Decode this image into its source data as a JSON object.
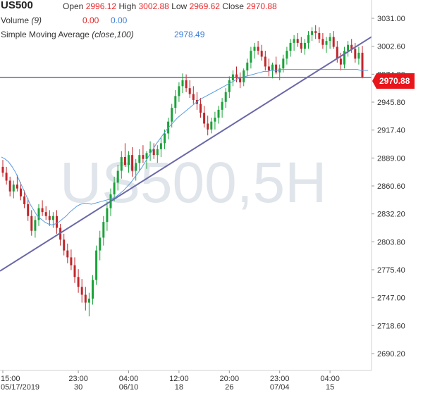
{
  "header": {
    "symbol": "US500",
    "open_label": "Open",
    "open_value": "2996.12",
    "high_label": "High",
    "high_value": "3002.88",
    "low_label": "Low",
    "low_value": "2969.62",
    "close_label": "Close",
    "close_value": "2970.88",
    "volume_label": "Volume",
    "volume_param": "(9)",
    "volume_v1": "0.00",
    "volume_v2": "0.00",
    "sma_label": "Simple Moving Average",
    "sma_param": "(close,100)",
    "sma_value": "2978.49"
  },
  "watermark": "US500,5H",
  "last_price_label": "2970.88",
  "colors": {
    "up": "#1aa33a",
    "down": "#c0262c",
    "sma": "#5b9be0",
    "trendline": "#6a68a8",
    "price_tag": "#e8151b",
    "watermark": "#dfe5ea"
  },
  "chart_data": {
    "type": "candlestick",
    "ylim": [
      2675,
      3045
    ],
    "yticks": [
      "3031.00",
      "3002.60",
      "2974.20",
      "2945.80",
      "2917.40",
      "2889.00",
      "2860.60",
      "2832.20",
      "2803.80",
      "2775.40",
      "2747.00",
      "2718.60",
      "2690.20"
    ],
    "xticks": [
      {
        "time": "15:00",
        "date": "05/17/2019",
        "bar": 0
      },
      {
        "time": "23:00",
        "date": "30",
        "bar": 21
      },
      {
        "time": "04:00",
        "date": "06/10",
        "bar": 35
      },
      {
        "time": "12:00",
        "date": "18",
        "bar": 49
      },
      {
        "time": "20:00",
        "date": "26",
        "bar": 63
      },
      {
        "time": "23:00",
        "date": "07/04",
        "bar": 77
      },
      {
        "time": "04:00",
        "date": "15",
        "bar": 91
      }
    ],
    "last_price": 2970.88,
    "horizontal_level": 2970.88,
    "trendline": {
      "start": {
        "bar": 0,
        "price": 2775
      },
      "end": {
        "bar": 102,
        "price": 3010
      }
    },
    "sma_100": [
      2890,
      2888,
      2885,
      2880,
      2874,
      2866,
      2858,
      2850,
      2842,
      2836,
      2830,
      2827,
      2824,
      2822,
      2821,
      2822,
      2824,
      2827,
      2830,
      2834,
      2837,
      2840,
      2842,
      2843,
      2843,
      2842,
      2843,
      2844,
      2845,
      2846,
      2847,
      2848,
      2850,
      2853,
      2856,
      2860,
      2864,
      2869,
      2874,
      2879,
      2885,
      2891,
      2897,
      2903,
      2908,
      2913,
      2918,
      2922,
      2926,
      2930,
      2933,
      2936,
      2939,
      2942,
      2945,
      2948,
      2950,
      2952,
      2954,
      2956,
      2958,
      2960,
      2962,
      2964,
      2966,
      2968,
      2970,
      2971,
      2972,
      2973,
      2974,
      2975,
      2976,
      2977,
      2977,
      2978,
      2978,
      2978,
      2979,
      2979,
      2979,
      2979,
      2979,
      2979,
      2979,
      2979,
      2979,
      2979,
      2979,
      2979,
      2979,
      2979,
      2979,
      2979,
      2979,
      2979,
      2979,
      2979,
      2979,
      2979,
      2978,
      2978,
      2978
    ],
    "ohlc": [
      [
        2880,
        2887,
        2870,
        2874
      ],
      [
        2874,
        2880,
        2862,
        2866
      ],
      [
        2866,
        2870,
        2850,
        2855
      ],
      [
        2855,
        2866,
        2848,
        2862
      ],
      [
        2862,
        2872,
        2855,
        2858
      ],
      [
        2858,
        2864,
        2846,
        2850
      ],
      [
        2850,
        2856,
        2838,
        2842
      ],
      [
        2842,
        2848,
        2825,
        2830
      ],
      [
        2830,
        2836,
        2810,
        2815
      ],
      [
        2815,
        2830,
        2808,
        2826
      ],
      [
        2826,
        2842,
        2820,
        2838
      ],
      [
        2838,
        2846,
        2830,
        2834
      ],
      [
        2834,
        2840,
        2826,
        2830
      ],
      [
        2830,
        2836,
        2820,
        2826
      ],
      [
        2826,
        2834,
        2818,
        2830
      ],
      [
        2830,
        2836,
        2812,
        2818
      ],
      [
        2818,
        2822,
        2800,
        2806
      ],
      [
        2806,
        2812,
        2790,
        2795
      ],
      [
        2795,
        2802,
        2782,
        2788
      ],
      [
        2788,
        2796,
        2775,
        2780
      ],
      [
        2780,
        2788,
        2762,
        2768
      ],
      [
        2768,
        2776,
        2752,
        2758
      ],
      [
        2758,
        2766,
        2742,
        2750
      ],
      [
        2750,
        2758,
        2734,
        2742
      ],
      [
        2742,
        2752,
        2728,
        2746
      ],
      [
        2746,
        2770,
        2740,
        2765
      ],
      [
        2765,
        2800,
        2760,
        2795
      ],
      [
        2795,
        2815,
        2785,
        2808
      ],
      [
        2808,
        2830,
        2800,
        2824
      ],
      [
        2824,
        2845,
        2815,
        2838
      ],
      [
        2838,
        2858,
        2830,
        2852
      ],
      [
        2852,
        2870,
        2845,
        2864
      ],
      [
        2864,
        2882,
        2856,
        2876
      ],
      [
        2876,
        2896,
        2868,
        2890
      ],
      [
        2890,
        2904,
        2880,
        2882
      ],
      [
        2882,
        2896,
        2874,
        2892
      ],
      [
        2892,
        2900,
        2870,
        2876
      ],
      [
        2876,
        2888,
        2866,
        2884
      ],
      [
        2884,
        2898,
        2876,
        2892
      ],
      [
        2892,
        2902,
        2884,
        2888
      ],
      [
        2888,
        2896,
        2878,
        2894
      ],
      [
        2894,
        2906,
        2886,
        2898
      ],
      [
        2898,
        2904,
        2888,
        2892
      ],
      [
        2892,
        2902,
        2884,
        2898
      ],
      [
        2898,
        2910,
        2890,
        2904
      ],
      [
        2904,
        2918,
        2898,
        2914
      ],
      [
        2914,
        2930,
        2908,
        2926
      ],
      [
        2926,
        2944,
        2920,
        2940
      ],
      [
        2940,
        2958,
        2934,
        2952
      ],
      [
        2952,
        2966,
        2946,
        2962
      ],
      [
        2962,
        2975,
        2955,
        2968
      ],
      [
        2968,
        2974,
        2956,
        2960
      ],
      [
        2960,
        2968,
        2950,
        2954
      ],
      [
        2954,
        2962,
        2944,
        2948
      ],
      [
        2948,
        2956,
        2938,
        2944
      ],
      [
        2944,
        2950,
        2930,
        2935
      ],
      [
        2935,
        2942,
        2920,
        2924
      ],
      [
        2924,
        2932,
        2912,
        2918
      ],
      [
        2918,
        2930,
        2914,
        2926
      ],
      [
        2926,
        2936,
        2918,
        2930
      ],
      [
        2930,
        2942,
        2924,
        2938
      ],
      [
        2938,
        2950,
        2930,
        2946
      ],
      [
        2946,
        2960,
        2940,
        2956
      ],
      [
        2956,
        2972,
        2950,
        2968
      ],
      [
        2968,
        2978,
        2962,
        2974
      ],
      [
        2974,
        2982,
        2966,
        2970
      ],
      [
        2970,
        2976,
        2960,
        2966
      ],
      [
        2966,
        2980,
        2962,
        2978
      ],
      [
        2978,
        2990,
        2972,
        2986
      ],
      [
        2986,
        3002,
        2980,
        2998
      ],
      [
        2998,
        3006,
        2990,
        3002
      ],
      [
        3002,
        3008,
        2994,
        2998
      ],
      [
        2998,
        3004,
        2988,
        2992
      ],
      [
        2992,
        2998,
        2978,
        2982
      ],
      [
        2982,
        2990,
        2972,
        2978
      ],
      [
        2978,
        2986,
        2970,
        2984
      ],
      [
        2984,
        2992,
        2974,
        2976
      ],
      [
        2976,
        2984,
        2968,
        2980
      ],
      [
        2980,
        2994,
        2976,
        2990
      ],
      [
        2990,
        3002,
        2984,
        2998
      ],
      [
        2998,
        3010,
        2992,
        3006
      ],
      [
        3006,
        3014,
        2998,
        3010
      ],
      [
        3010,
        3016,
        3002,
        3006
      ],
      [
        3006,
        3012,
        2996,
        3000
      ],
      [
        3000,
        3010,
        2994,
        3006
      ],
      [
        3006,
        3018,
        3000,
        3014
      ],
      [
        3014,
        3022,
        3008,
        3018
      ],
      [
        3018,
        3024,
        3010,
        3016
      ],
      [
        3016,
        3022,
        3006,
        3010
      ],
      [
        3010,
        3016,
        3000,
        3004
      ],
      [
        3004,
        3012,
        2996,
        3008
      ],
      [
        3008,
        3016,
        3000,
        3012
      ],
      [
        3012,
        3018,
        3000,
        3002
      ],
      [
        3002,
        3008,
        2986,
        2990
      ],
      [
        2990,
        2996,
        2978,
        2984
      ],
      [
        2984,
        3002,
        2980,
        2998
      ],
      [
        2998,
        3008,
        2992,
        3004
      ],
      [
        3004,
        3010,
        2996,
        3000
      ],
      [
        3000,
        3006,
        2986,
        2990
      ],
      [
        2990,
        3002,
        2984,
        2996
      ],
      [
        2996,
        3003,
        2970,
        2971
      ]
    ]
  }
}
